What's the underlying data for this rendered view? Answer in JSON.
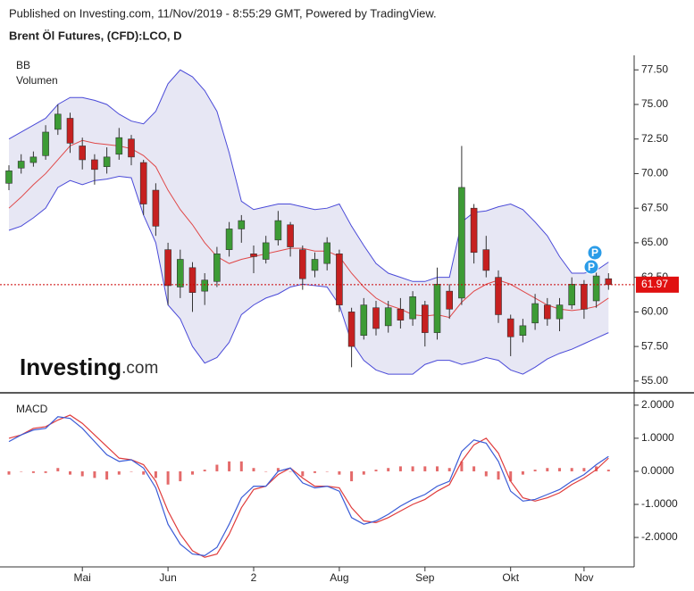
{
  "header": {
    "published": "Published on Investing.com, 11/Nov/2019 - 8:55:29 GMT, Powered by TradingView.",
    "title": "Brent Öl Futures, (CFD):LCO, D"
  },
  "logo": {
    "name": "Investing",
    "suffix": ".com"
  },
  "chart_data": [
    {
      "type": "candlestick",
      "labels": [
        "BB",
        "Volumen"
      ],
      "annotations": [
        "P",
        "P"
      ],
      "categories": [
        null,
        null,
        null,
        null,
        null,
        null,
        "Mai",
        null,
        null,
        null,
        null,
        null,
        null,
        "Jun",
        null,
        null,
        null,
        null,
        null,
        null,
        "2",
        null,
        null,
        null,
        null,
        null,
        null,
        "Aug",
        null,
        null,
        null,
        null,
        null,
        null,
        "Sep",
        null,
        null,
        null,
        null,
        null,
        null,
        "Okt",
        null,
        null,
        null,
        null,
        null,
        "Nov",
        null,
        null
      ],
      "open": [
        69.3,
        70.4,
        70.8,
        71.3,
        73.2,
        74,
        72,
        71,
        70.5,
        71.4,
        72.5,
        70.8,
        68.8,
        64.5,
        61.8,
        63.2,
        61.5,
        62.2,
        64.5,
        66,
        64.2,
        63.8,
        65.2,
        66.3,
        64.5,
        63,
        63.5,
        64.2,
        60,
        58.3,
        60.3,
        59,
        60.2,
        59.5,
        60.5,
        58.5,
        61.5,
        61,
        67.5,
        64.5,
        62.5,
        59.5,
        58.3,
        59.2,
        60.5,
        59.5,
        60.5,
        62,
        60.8,
        62.4
      ],
      "high": [
        70.6,
        71.4,
        71.6,
        73.5,
        75,
        74.4,
        72.6,
        71.4,
        71.9,
        73.3,
        72.8,
        71,
        69.3,
        65,
        64.5,
        63.6,
        62.8,
        64.7,
        66.5,
        67,
        64.8,
        65.5,
        67.3,
        66.5,
        64.8,
        64.3,
        65.4,
        64.5,
        60.3,
        61,
        60.8,
        60.8,
        61,
        61.5,
        60.8,
        63.2,
        62,
        72,
        67.8,
        65.5,
        63,
        59.8,
        59.5,
        61.3,
        61,
        61,
        62.5,
        62.3,
        63.3,
        62.8
      ],
      "low": [
        68.8,
        70,
        70.5,
        71,
        72.8,
        71.5,
        70.3,
        69.2,
        70,
        71,
        70.6,
        67,
        65.5,
        60.5,
        61,
        60,
        60.5,
        61.8,
        64,
        65,
        62.8,
        63.5,
        64.8,
        64,
        61.6,
        62.5,
        63,
        60,
        56,
        58,
        58.3,
        58.5,
        58.8,
        59,
        57.5,
        58,
        59.5,
        60.5,
        63.5,
        62.5,
        59.2,
        56.8,
        57.8,
        58.7,
        59,
        58.6,
        60.2,
        59.5,
        60.3,
        61.6
      ],
      "close": [
        70.2,
        70.9,
        71.2,
        73,
        74.3,
        72.2,
        71,
        70.3,
        71.2,
        72.6,
        71.2,
        67.8,
        66.2,
        61.9,
        63.8,
        61.4,
        62.3,
        64.2,
        66,
        66.6,
        64,
        65,
        66.6,
        64.7,
        62.4,
        63.8,
        65,
        60.5,
        57.5,
        60.5,
        58.8,
        60.3,
        59.4,
        61.1,
        58.5,
        62,
        60.2,
        69,
        64.3,
        63,
        59.8,
        58.2,
        59,
        60.6,
        59.5,
        60.5,
        62,
        60.2,
        62.6,
        61.97
      ],
      "bands": {
        "upper": [
          72.5,
          73,
          73.5,
          74,
          75,
          75.5,
          75.5,
          75.3,
          75,
          74.3,
          73.8,
          73.6,
          74.5,
          76.5,
          77.5,
          77,
          76,
          74.5,
          71.5,
          68,
          67.4,
          67.6,
          67.8,
          67.8,
          67.6,
          67.4,
          67.5,
          67.8,
          66.2,
          64.8,
          63.5,
          62.8,
          62.5,
          62.2,
          62.2,
          62.5,
          62.5,
          66.5,
          67.2,
          67.3,
          67.6,
          67.8,
          67.4,
          66.5,
          65.5,
          64,
          62.8,
          62.8,
          63,
          63.6
        ],
        "middle": [
          67.5,
          68.3,
          69.2,
          70,
          71,
          72,
          72.4,
          72.2,
          72.1,
          72,
          71.8,
          71.3,
          70.5,
          68.8,
          67.4,
          66.3,
          65,
          64,
          63.5,
          63.8,
          64,
          64.2,
          64.4,
          64.6,
          64.6,
          64.4,
          64.4,
          64,
          62.8,
          61.8,
          61,
          60.5,
          60.2,
          59.8,
          59.7,
          59.8,
          59.6,
          60.7,
          61.5,
          62,
          62.3,
          62,
          61.5,
          61,
          60.5,
          60.2,
          60.1,
          60.2,
          60.4,
          61
        ],
        "lower": [
          65.9,
          66.2,
          66.8,
          67.5,
          69,
          69.5,
          69.2,
          69.5,
          69.6,
          69.8,
          69.7,
          67,
          65,
          60.5,
          59.5,
          57.5,
          56.3,
          56.7,
          57.8,
          59.8,
          60.5,
          61,
          61.3,
          61.8,
          62,
          61.9,
          61.8,
          60.5,
          57.8,
          56.5,
          55.8,
          55.5,
          55.5,
          55.5,
          56.2,
          56.5,
          56.5,
          56.2,
          56.4,
          56.7,
          56.5,
          55.8,
          55.5,
          56,
          56.6,
          57,
          57.3,
          57.7,
          58.1,
          58.5
        ]
      },
      "up_color": "#3d9b35",
      "down_color": "#c62020",
      "band_color": "#4a4ad8",
      "band_fill": "#e3e3f2",
      "middle_color": "#e04848",
      "last_price": 61.97,
      "ylim": [
        54.15,
        78.55
      ],
      "yticks": [
        {
          "value": 55,
          "label": "55.00"
        },
        {
          "value": 57.5,
          "label": "57.50"
        },
        {
          "value": 60,
          "label": "60.00"
        },
        {
          "value": 62.5,
          "label": "62.50"
        },
        {
          "value": 65,
          "label": "65.00"
        },
        {
          "value": 67.5,
          "label": "67.50"
        },
        {
          "value": 70,
          "label": "70.00"
        },
        {
          "value": 72.5,
          "label": "72.50"
        },
        {
          "value": 75,
          "label": "75.00"
        },
        {
          "value": 77.5,
          "label": "77.50"
        }
      ]
    },
    {
      "type": "macd",
      "label": "MACD",
      "macd": [
        0.9,
        1.1,
        1.25,
        1.3,
        1.65,
        1.6,
        1.3,
        0.9,
        0.5,
        0.3,
        0.35,
        0.1,
        -0.5,
        -1.6,
        -2.2,
        -2.5,
        -2.55,
        -2.3,
        -1.6,
        -0.8,
        -0.45,
        -0.45,
        0,
        0.1,
        -0.35,
        -0.5,
        -0.45,
        -0.6,
        -1.4,
        -1.6,
        -1.5,
        -1.3,
        -1.05,
        -0.85,
        -0.7,
        -0.45,
        -0.3,
        0.6,
        0.95,
        0.85,
        0.3,
        -0.6,
        -0.9,
        -0.85,
        -0.7,
        -0.55,
        -0.3,
        -0.1,
        0.2,
        0.45
      ],
      "signal": [
        1.0,
        1.1,
        1.3,
        1.35,
        1.55,
        1.7,
        1.45,
        1.1,
        0.75,
        0.4,
        0.35,
        0.2,
        -0.3,
        -1.2,
        -1.9,
        -2.4,
        -2.6,
        -2.5,
        -1.9,
        -1.1,
        -0.55,
        -0.45,
        -0.1,
        0.1,
        -0.2,
        -0.45,
        -0.45,
        -0.5,
        -1.1,
        -1.5,
        -1.55,
        -1.4,
        -1.2,
        -1.0,
        -0.85,
        -0.6,
        -0.4,
        0.3,
        0.8,
        1.0,
        0.55,
        -0.3,
        -0.8,
        -0.9,
        -0.8,
        -0.65,
        -0.4,
        -0.2,
        0.05,
        0.4
      ],
      "histogram": [
        -0.1,
        0,
        -0.05,
        -0.05,
        0.1,
        -0.1,
        -0.15,
        -0.2,
        -0.25,
        -0.1,
        0,
        -0.1,
        -0.2,
        -0.4,
        -0.3,
        -0.1,
        0.05,
        0.2,
        0.3,
        0.3,
        0.1,
        0,
        0.1,
        0,
        -0.15,
        -0.05,
        0,
        -0.1,
        -0.3,
        -0.1,
        0.05,
        0.1,
        0.15,
        0.15,
        0.15,
        0.15,
        0.1,
        0.3,
        0.15,
        -0.15,
        -0.25,
        -0.3,
        -0.1,
        0.05,
        0.1,
        0.1,
        0.1,
        0.1,
        0.15,
        0.05
      ],
      "macd_color": "#3a5bd6",
      "signal_color": "#e03c3c",
      "hist_color": "#e46a6a",
      "ylim": [
        -2.89,
        2.32
      ],
      "yticks": [
        {
          "value": -2,
          "label": "-2.0000"
        },
        {
          "value": -1,
          "label": "-1.0000"
        },
        {
          "value": 0,
          "label": "0.0000"
        },
        {
          "value": 1,
          "label": "1.0000"
        },
        {
          "value": 2,
          "label": "2.0000"
        }
      ]
    }
  ]
}
